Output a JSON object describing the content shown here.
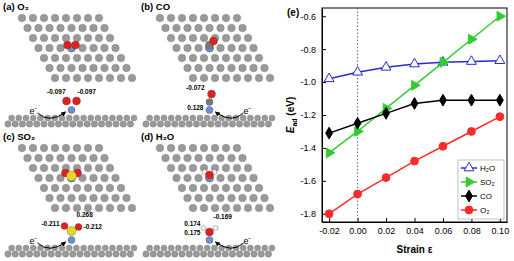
{
  "chart_data": {
    "type": "line",
    "title": "(e)",
    "xlabel": "Strain ε",
    "ylabel": "Ead (eV)",
    "x": [
      -0.02,
      0.0,
      0.02,
      0.04,
      0.06,
      0.08,
      0.1
    ],
    "series": [
      {
        "name": "H₂O",
        "color": "#2a2ad0",
        "marker": "triangle-open",
        "values": [
          -0.98,
          -0.94,
          -0.91,
          -0.89,
          -0.88,
          -0.875,
          -0.87
        ]
      },
      {
        "name": "SO₂",
        "color": "#33cc33",
        "marker": "triangle-right",
        "values": [
          -1.43,
          -1.3,
          -1.16,
          -1.02,
          -0.88,
          -0.74,
          -0.6
        ]
      },
      {
        "name": "CO",
        "color": "#000000",
        "marker": "diamond",
        "values": [
          -1.31,
          -1.25,
          -1.19,
          -1.13,
          -1.11,
          -1.11,
          -1.11
        ]
      },
      {
        "name": "O₂",
        "color": "#ff2a2a",
        "marker": "circle",
        "values": [
          -1.8,
          -1.68,
          -1.58,
          -1.48,
          -1.39,
          -1.3,
          -1.21
        ]
      }
    ],
    "xlim": [
      -0.025,
      0.105
    ],
    "xticks": [
      -0.02,
      {
        "value": 0,
        "label": "0.00"
      },
      0.02,
      0.04,
      0.06,
      0.08,
      {
        "value": 0.1,
        "label": "0.10"
      }
    ],
    "ylim": [
      -1.85,
      -0.55
    ],
    "yticks": [
      -0.6,
      -0.8,
      {
        "value": -1,
        "label": "-1.0"
      },
      -1.2,
      -1.4,
      -1.6,
      -1.8
    ],
    "vline": 0,
    "legend": "lower right",
    "grid": false
  },
  "panels": [
    {
      "label": "(a) O₂",
      "charges": [
        "-0.097",
        "-0.097"
      ],
      "electron": "e⁻"
    },
    {
      "label": "(b) CO",
      "charges": [
        "-0.072",
        "0.128"
      ],
      "electron": "e⁻"
    },
    {
      "label": "(c) SO₂",
      "charges": [
        "-0.211",
        "0.268",
        "-0.212"
      ],
      "electron": "e⁻"
    },
    {
      "label": "(d) H₂O",
      "charges": [
        "0.174",
        "-0.169",
        "0.175"
      ],
      "electron": "e⁻"
    }
  ]
}
